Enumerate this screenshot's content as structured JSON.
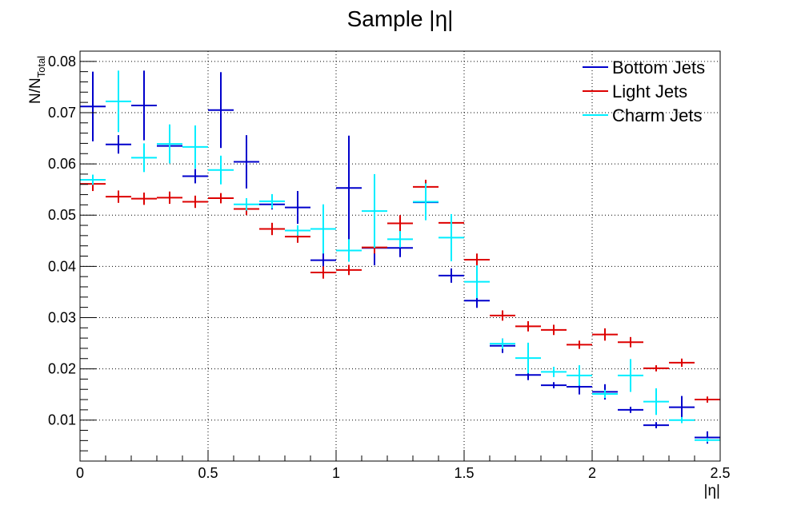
{
  "chart_data": {
    "type": "scatter",
    "title": "Sample |η|",
    "xlabel": "|η|",
    "ylabel_main": "N/N",
    "ylabel_sub": "Total",
    "xlim": [
      0,
      2.5
    ],
    "ylim": [
      0.002,
      0.082
    ],
    "grid": true,
    "legend_position": "top-right",
    "x_ticks": [
      "0",
      "0.5",
      "1",
      "1.5",
      "2",
      "2.5"
    ],
    "y_ticks": [
      "0.01",
      "0.02",
      "0.03",
      "0.04",
      "0.05",
      "0.06",
      "0.07",
      "0.08"
    ],
    "x": [
      0.05,
      0.15,
      0.25,
      0.35,
      0.45,
      0.55,
      0.65,
      0.75,
      0.85,
      0.95,
      1.05,
      1.15,
      1.25,
      1.35,
      1.45,
      1.55,
      1.65,
      1.75,
      1.85,
      1.95,
      2.05,
      2.15,
      2.25,
      2.35,
      2.45
    ],
    "bin_half_width": 0.05,
    "series": [
      {
        "name": "Bottom Jets",
        "color": "#0000cc",
        "values": [
          0.0712,
          0.0638,
          0.0714,
          0.0635,
          0.0576,
          0.0705,
          0.0604,
          0.0521,
          0.0515,
          0.0412,
          0.0553,
          0.0436,
          0.0436,
          0.0525,
          0.0382,
          0.0333,
          0.0245,
          0.0188,
          0.0168,
          0.0165,
          0.0155,
          0.012,
          0.009,
          0.0125,
          0.0066
        ],
        "errors": [
          0.0068,
          0.0018,
          0.0068,
          0.001,
          0.0014,
          0.0074,
          0.0052,
          0.001,
          0.0032,
          0.002,
          0.0102,
          0.0034,
          0.0018,
          0.003,
          0.0014,
          0.0014,
          0.0014,
          0.001,
          0.0006,
          0.0015,
          0.0015,
          0.0006,
          0.0006,
          0.0022,
          0.0012
        ]
      },
      {
        "name": "Light Jets",
        "color": "#dd0000",
        "values": [
          0.0561,
          0.0536,
          0.0532,
          0.0534,
          0.0526,
          0.0533,
          0.0512,
          0.0473,
          0.0458,
          0.0388,
          0.0393,
          0.0437,
          0.0484,
          0.0555,
          0.0485,
          0.0413,
          0.0304,
          0.0283,
          0.0276,
          0.0247,
          0.0267,
          0.0252,
          0.0201,
          0.0212,
          0.014
        ],
        "errors": [
          0.0014,
          0.0012,
          0.0012,
          0.0012,
          0.0012,
          0.001,
          0.0012,
          0.0012,
          0.0012,
          0.0012,
          0.001,
          0.0012,
          0.0016,
          0.0014,
          0.0016,
          0.0012,
          0.001,
          0.001,
          0.001,
          0.0008,
          0.0012,
          0.001,
          0.0006,
          0.0008,
          0.0006
        ]
      },
      {
        "name": "Charm Jets",
        "color": "#00eeff",
        "values": [
          0.0569,
          0.0722,
          0.0612,
          0.0639,
          0.0633,
          0.0588,
          0.0521,
          0.0527,
          0.047,
          0.0473,
          0.0431,
          0.0508,
          0.0453,
          0.0526,
          0.0456,
          0.037,
          0.0249,
          0.0221,
          0.0194,
          0.0187,
          0.0151,
          0.0187,
          0.0136,
          0.01,
          0.0061
        ],
        "errors": [
          0.001,
          0.006,
          0.0028,
          0.0038,
          0.0042,
          0.0028,
          0.0012,
          0.0014,
          0.001,
          0.0048,
          0.0022,
          0.0072,
          0.0016,
          0.0036,
          0.0046,
          0.0032,
          0.001,
          0.003,
          0.001,
          0.002,
          0.0008,
          0.0032,
          0.0026,
          0.0006,
          0.0004
        ]
      }
    ]
  }
}
